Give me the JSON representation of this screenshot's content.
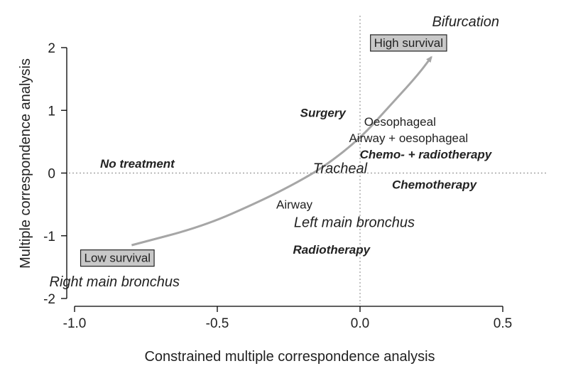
{
  "chart_data": {
    "type": "scatter",
    "xlabel": "Constrained multiple correspondence analysis",
    "ylabel": "Multiple correspondence analysis",
    "xlim": [
      -1.0,
      0.5
    ],
    "ylim": [
      -2,
      2
    ],
    "xticks": [
      -1.0,
      -0.5,
      0.0,
      0.5
    ],
    "xtick_labels": [
      "-1.0",
      "-0.5",
      "0.0",
      "0.5"
    ],
    "yticks": [
      -2,
      -1,
      0,
      1,
      2
    ],
    "ytick_labels": [
      "-2",
      "-1",
      "0",
      "1",
      "2"
    ],
    "reference_lines": {
      "x": 0,
      "y": 0
    },
    "points": [
      {
        "label": "Bifurcation",
        "x": 0.37,
        "y": 2.42,
        "style": "italic",
        "size": 20
      },
      {
        "label": "Surgery",
        "x": -0.13,
        "y": 0.96,
        "style": "bold-italic",
        "size": 17
      },
      {
        "label": "Oesophageal",
        "x": 0.14,
        "y": 0.82,
        "style": "normal",
        "size": 17
      },
      {
        "label": "Airway + oesophageal",
        "x": 0.17,
        "y": 0.56,
        "style": "normal",
        "size": 17
      },
      {
        "label": "Chemo- + radiotherapy",
        "x": 0.23,
        "y": 0.3,
        "style": "bold-italic",
        "size": 17
      },
      {
        "label": "No treatment",
        "x": -0.78,
        "y": 0.15,
        "style": "bold-italic",
        "size": 17
      },
      {
        "label": "Tracheal",
        "x": -0.07,
        "y": 0.08,
        "style": "italic",
        "size": 20
      },
      {
        "label": "Chemotherapy",
        "x": 0.26,
        "y": -0.18,
        "style": "bold-italic",
        "size": 17
      },
      {
        "label": "Airway",
        "x": -0.23,
        "y": -0.5,
        "style": "normal",
        "size": 17
      },
      {
        "label": "Left main bronchus",
        "x": -0.02,
        "y": -0.78,
        "style": "italic",
        "size": 20
      },
      {
        "label": "Radiotherapy",
        "x": -0.1,
        "y": -1.22,
        "style": "bold-italic",
        "size": 17
      },
      {
        "label": "Right main bronchus",
        "x": -0.86,
        "y": -1.73,
        "style": "italic",
        "size": 20
      }
    ],
    "annotations": [
      {
        "label": "High survival",
        "x": 0.17,
        "y": 2.08
      },
      {
        "label": "Low survival",
        "x": -0.85,
        "y": -1.35
      }
    ],
    "trend_arrow": {
      "x": [
        -0.8,
        -0.55,
        -0.35,
        -0.22,
        -0.12,
        0.0,
        0.1,
        0.2,
        0.25
      ],
      "y": [
        -1.15,
        -0.85,
        -0.45,
        -0.15,
        0.12,
        0.55,
        1.05,
        1.55,
        1.85
      ]
    }
  }
}
